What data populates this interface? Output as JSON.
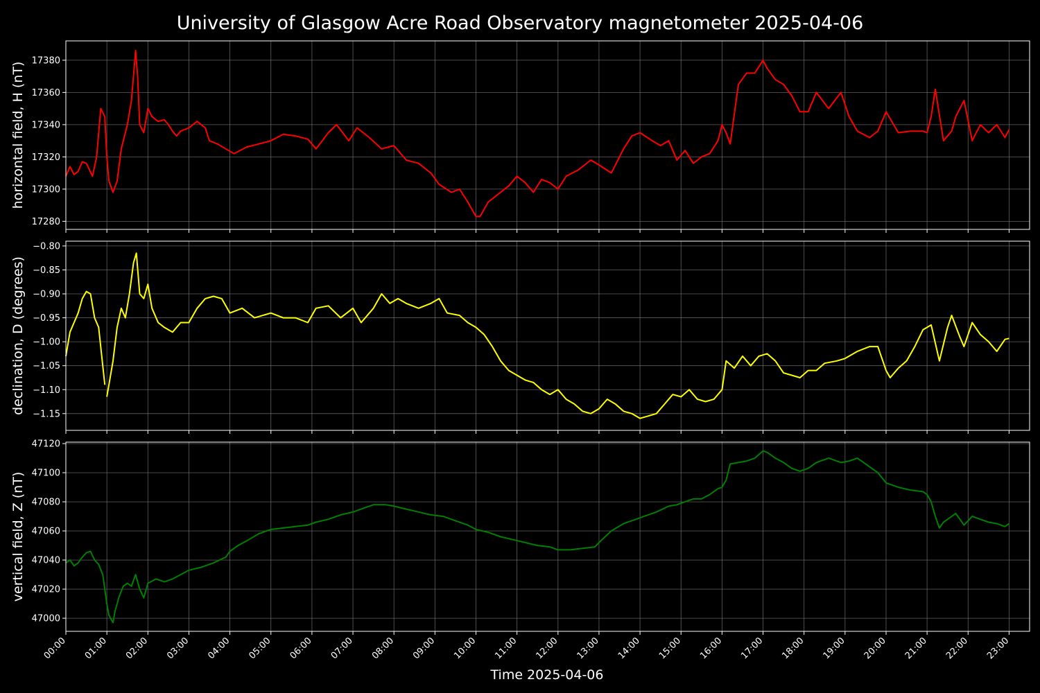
{
  "title": "University of Glasgow Acre Road Observatory magnetometer 2025-04-06",
  "xlabel": "Time 2025-04-06",
  "colors": {
    "background": "#000000",
    "axes": "#ffffff",
    "grid": "#808080"
  },
  "chart_data": [
    {
      "type": "line",
      "ylabel": "horizontal field, H (nT)",
      "color": "#ff0000",
      "ylim": [
        17275,
        17392
      ],
      "xlim": [
        0,
        23.5
      ],
      "yticks": [
        17280,
        17300,
        17320,
        17340,
        17360,
        17380
      ],
      "ytick_labels": [
        "17280",
        "17300",
        "17320",
        "17340",
        "17360",
        "17380"
      ],
      "grid": true,
      "series": [
        {
          "x": [
            0,
            0.1,
            0.2,
            0.3,
            0.4,
            0.5,
            0.65,
            0.75,
            0.85,
            0.95,
            1.0,
            1.05,
            1.15,
            1.25,
            1.35,
            1.5,
            1.6,
            1.7,
            1.75,
            1.8,
            1.9,
            2.0,
            2.1,
            2.25,
            2.4,
            2.5,
            2.6,
            2.7,
            2.8,
            3.0,
            3.2,
            3.4,
            3.5,
            3.7,
            3.9,
            4.1,
            4.4,
            4.7,
            5.0,
            5.3,
            5.6,
            5.9,
            6.1,
            6.4,
            6.6,
            6.9,
            7.1,
            7.4,
            7.7,
            8.0,
            8.3,
            8.6,
            8.9,
            9.1,
            9.4,
            9.6,
            9.8,
            10.0,
            10.1,
            10.3,
            10.6,
            10.8,
            11.0,
            11.2,
            11.4,
            11.6,
            11.8,
            12.0,
            12.2,
            12.5,
            12.8,
            13.0,
            13.3,
            13.6,
            13.8,
            14.0,
            14.3,
            14.5,
            14.7,
            14.9,
            15.1,
            15.3,
            15.5,
            15.7,
            15.9,
            16.0,
            16.1,
            16.2,
            16.4,
            16.6,
            16.8,
            17.0,
            17.1,
            17.3,
            17.5,
            17.7,
            17.9,
            18.1,
            18.3,
            18.6,
            18.9,
            19.1,
            19.3,
            19.6,
            19.8,
            20.0,
            20.3,
            20.6,
            20.9,
            21.0,
            21.1,
            21.2,
            21.4,
            21.6,
            21.7,
            21.9,
            22.1,
            22.3,
            22.5,
            22.7,
            22.9,
            23.0
          ],
          "y": [
            17308,
            17314,
            17309,
            17311,
            17317,
            17316,
            17308,
            17320,
            17350,
            17345,
            17320,
            17305,
            17298,
            17305,
            17325,
            17340,
            17355,
            17386,
            17370,
            17340,
            17335,
            17350,
            17345,
            17342,
            17343,
            17340,
            17336,
            17333,
            17336,
            17338,
            17342,
            17338,
            17330,
            17328,
            17325,
            17322,
            17326,
            17328,
            17330,
            17334,
            17333,
            17331,
            17325,
            17335,
            17340,
            17330,
            17338,
            17332,
            17325,
            17327,
            17318,
            17316,
            17310,
            17303,
            17298,
            17300,
            17292,
            17283,
            17283,
            17292,
            17298,
            17302,
            17308,
            17304,
            17298,
            17306,
            17304,
            17300,
            17308,
            17312,
            17318,
            17315,
            17310,
            17325,
            17333,
            17335,
            17330,
            17327,
            17330,
            17318,
            17324,
            17316,
            17320,
            17322,
            17330,
            17340,
            17335,
            17328,
            17365,
            17372,
            17372,
            17380,
            17375,
            17368,
            17365,
            17358,
            17348,
            17348,
            17360,
            17350,
            17360,
            17345,
            17336,
            17332,
            17336,
            17348,
            17335,
            17336,
            17336,
            17335,
            17345,
            17362,
            17330,
            17336,
            17345,
            17355,
            17330,
            17340,
            17335,
            17340,
            17332,
            17337
          ],
          "gaps": [
            [
              0.8,
              0.85
            ],
            [
              1.3,
              1.35
            ],
            [
              3.45,
              3.5
            ],
            [
              17.55,
              17.6
            ],
            [
              21.25,
              21.3
            ]
          ]
        }
      ]
    },
    {
      "type": "line",
      "ylabel": "declination, D (degrees)",
      "color": "#ffff00",
      "ylim": [
        -1.185,
        -0.79
      ],
      "xlim": [
        0,
        23.5
      ],
      "yticks": [
        -1.15,
        -1.1,
        -1.05,
        -1.0,
        -0.95,
        -0.9,
        -0.85,
        -0.8
      ],
      "ytick_labels": [
        "−1.15",
        "−1.10",
        "−1.05",
        "−1.00",
        "−0.95",
        "−0.90",
        "−0.85",
        "−0.80"
      ],
      "grid": true,
      "series": [
        {
          "x": [
            0,
            0.1,
            0.2,
            0.3,
            0.4,
            0.5,
            0.6,
            0.7,
            0.8,
            0.9,
            0.95,
            1.0,
            1.05,
            1.15,
            1.25,
            1.35,
            1.45,
            1.55,
            1.65,
            1.72,
            1.8,
            1.9,
            2.0,
            2.1,
            2.25,
            2.4,
            2.6,
            2.8,
            3.0,
            3.2,
            3.4,
            3.6,
            3.8,
            4.0,
            4.3,
            4.6,
            5.0,
            5.3,
            5.6,
            5.9,
            6.1,
            6.4,
            6.7,
            7.0,
            7.2,
            7.5,
            7.7,
            7.9,
            8.1,
            8.3,
            8.6,
            8.9,
            9.1,
            9.3,
            9.6,
            9.8,
            10.0,
            10.2,
            10.4,
            10.6,
            10.8,
            11.0,
            11.2,
            11.4,
            11.6,
            11.8,
            12.0,
            12.2,
            12.4,
            12.6,
            12.8,
            13.0,
            13.2,
            13.4,
            13.6,
            13.8,
            14.0,
            14.2,
            14.4,
            14.6,
            14.8,
            15.0,
            15.2,
            15.4,
            15.6,
            15.8,
            16.0,
            16.1,
            16.3,
            16.5,
            16.7,
            16.9,
            17.1,
            17.3,
            17.5,
            17.7,
            17.9,
            18.1,
            18.3,
            18.5,
            18.8,
            19.0,
            19.3,
            19.6,
            19.8,
            20.0,
            20.1,
            20.3,
            20.5,
            20.7,
            20.9,
            21.0,
            21.1,
            21.3,
            21.5,
            21.6,
            21.8,
            21.9,
            22.1,
            22.3,
            22.5,
            22.7,
            22.9,
            23.0
          ],
          "y": [
            -1.03,
            -0.98,
            -0.96,
            -0.94,
            -0.91,
            -0.895,
            -0.9,
            -0.95,
            -0.97,
            -1.05,
            -1.09,
            -1.115,
            -1.09,
            -1.04,
            -0.97,
            -0.93,
            -0.95,
            -0.9,
            -0.835,
            -0.815,
            -0.9,
            -0.91,
            -0.88,
            -0.93,
            -0.96,
            -0.97,
            -0.98,
            -0.96,
            -0.96,
            -0.93,
            -0.91,
            -0.905,
            -0.91,
            -0.94,
            -0.93,
            -0.95,
            -0.94,
            -0.95,
            -0.95,
            -0.96,
            -0.93,
            -0.925,
            -0.95,
            -0.93,
            -0.96,
            -0.93,
            -0.9,
            -0.92,
            -0.91,
            -0.92,
            -0.93,
            -0.92,
            -0.91,
            -0.94,
            -0.945,
            -0.96,
            -0.97,
            -0.985,
            -1.01,
            -1.04,
            -1.06,
            -1.07,
            -1.08,
            -1.085,
            -1.1,
            -1.11,
            -1.1,
            -1.12,
            -1.13,
            -1.145,
            -1.15,
            -1.14,
            -1.12,
            -1.13,
            -1.145,
            -1.15,
            -1.16,
            -1.155,
            -1.15,
            -1.13,
            -1.11,
            -1.115,
            -1.1,
            -1.12,
            -1.125,
            -1.12,
            -1.1,
            -1.04,
            -1.055,
            -1.03,
            -1.05,
            -1.03,
            -1.025,
            -1.04,
            -1.065,
            -1.07,
            -1.075,
            -1.06,
            -1.06,
            -1.045,
            -1.04,
            -1.035,
            -1.02,
            -1.01,
            -1.01,
            -1.06,
            -1.075,
            -1.055,
            -1.04,
            -1.01,
            -0.975,
            -0.97,
            -0.965,
            -1.04,
            -0.97,
            -0.945,
            -0.99,
            -1.01,
            -0.96,
            -0.985,
            -1.0,
            -1.02,
            -0.995,
            -0.993
          ],
          "gaps": [
            [
              0.95,
              1.0
            ],
            [
              1.25,
              1.3
            ],
            [
              1.5,
              1.55
            ]
          ]
        }
      ]
    },
    {
      "type": "line",
      "ylabel": "vertical field, Z (nT)",
      "color": "#008000",
      "ylim": [
        46991,
        47121
      ],
      "xlim": [
        0,
        23.5
      ],
      "yticks": [
        47000,
        47020,
        47040,
        47060,
        47080,
        47100,
        47120
      ],
      "ytick_labels": [
        "47000",
        "47020",
        "47040",
        "47060",
        "47080",
        "47100",
        "47120"
      ],
      "grid": true,
      "series": [
        {
          "x": [
            0,
            0.1,
            0.2,
            0.3,
            0.4,
            0.5,
            0.6,
            0.7,
            0.8,
            0.9,
            1.0,
            1.05,
            1.15,
            1.2,
            1.3,
            1.4,
            1.5,
            1.6,
            1.7,
            1.8,
            1.9,
            2.0,
            2.2,
            2.4,
            2.6,
            2.8,
            3.0,
            3.3,
            3.6,
            3.9,
            4.0,
            4.2,
            4.4,
            4.7,
            5.0,
            5.3,
            5.6,
            5.9,
            6.1,
            6.4,
            6.7,
            7.0,
            7.2,
            7.5,
            7.8,
            8.0,
            8.3,
            8.6,
            8.9,
            9.2,
            9.5,
            9.8,
            10.0,
            10.3,
            10.6,
            10.9,
            11.2,
            11.5,
            11.8,
            12.0,
            12.3,
            12.6,
            12.9,
            13.0,
            13.3,
            13.6,
            13.9,
            14.1,
            14.4,
            14.7,
            14.9,
            15.1,
            15.3,
            15.5,
            15.7,
            15.9,
            16.0,
            16.1,
            16.2,
            16.4,
            16.6,
            16.8,
            17.0,
            17.1,
            17.3,
            17.5,
            17.7,
            17.9,
            18.1,
            18.3,
            18.6,
            18.9,
            19.1,
            19.3,
            19.6,
            19.8,
            20.0,
            20.3,
            20.6,
            20.9,
            21.0,
            21.1,
            21.2,
            21.3,
            21.4,
            21.5,
            21.7,
            21.9,
            22.1,
            22.3,
            22.5,
            22.7,
            22.9,
            23.0
          ],
          "y": [
            47038,
            47040,
            47036,
            47038,
            47042,
            47045,
            47046,
            47040,
            47037,
            47030,
            47010,
            47002,
            46997,
            47005,
            47015,
            47022,
            47024,
            47022,
            47030,
            47020,
            47014,
            47024,
            47027,
            47025,
            47027,
            47030,
            47033,
            47035,
            47038,
            47042,
            47046,
            47050,
            47053,
            47058,
            47061,
            47062,
            47063,
            47064,
            47066,
            47068,
            47071,
            47073,
            47075,
            47078,
            47078,
            47077,
            47075,
            47073,
            47071,
            47070,
            47067,
            47064,
            47061,
            47059,
            47056,
            47054,
            47052,
            47050,
            47049,
            47047,
            47047,
            47048,
            47049,
            47052,
            47060,
            47065,
            47068,
            47070,
            47073,
            47077,
            47078,
            47080,
            47082,
            47082,
            47085,
            47089,
            47090,
            47095,
            47106,
            47107,
            47108,
            47110,
            47115,
            47114,
            47110,
            47107,
            47103,
            47101,
            47103,
            47107,
            47110,
            47107,
            47108,
            47110,
            47104,
            47100,
            47093,
            47090,
            47088,
            47087,
            47085,
            47080,
            47070,
            47062,
            47066,
            47068,
            47072,
            47064,
            47070,
            47068,
            47066,
            47065,
            47063,
            47065
          ],
          "gaps": []
        }
      ]
    }
  ],
  "xticks": [
    0,
    1,
    2,
    3,
    4,
    5,
    6,
    7,
    8,
    9,
    10,
    11,
    12,
    13,
    14,
    15,
    16,
    17,
    18,
    19,
    20,
    21,
    22,
    23
  ],
  "xtick_labels": [
    "00:00",
    "01:00",
    "02:00",
    "03:00",
    "04:00",
    "05:00",
    "06:00",
    "07:00",
    "08:00",
    "09:00",
    "10:00",
    "11:00",
    "12:00",
    "13:00",
    "14:00",
    "15:00",
    "16:00",
    "17:00",
    "18:00",
    "19:00",
    "20:00",
    "21:00",
    "22:00",
    "23:00"
  ]
}
